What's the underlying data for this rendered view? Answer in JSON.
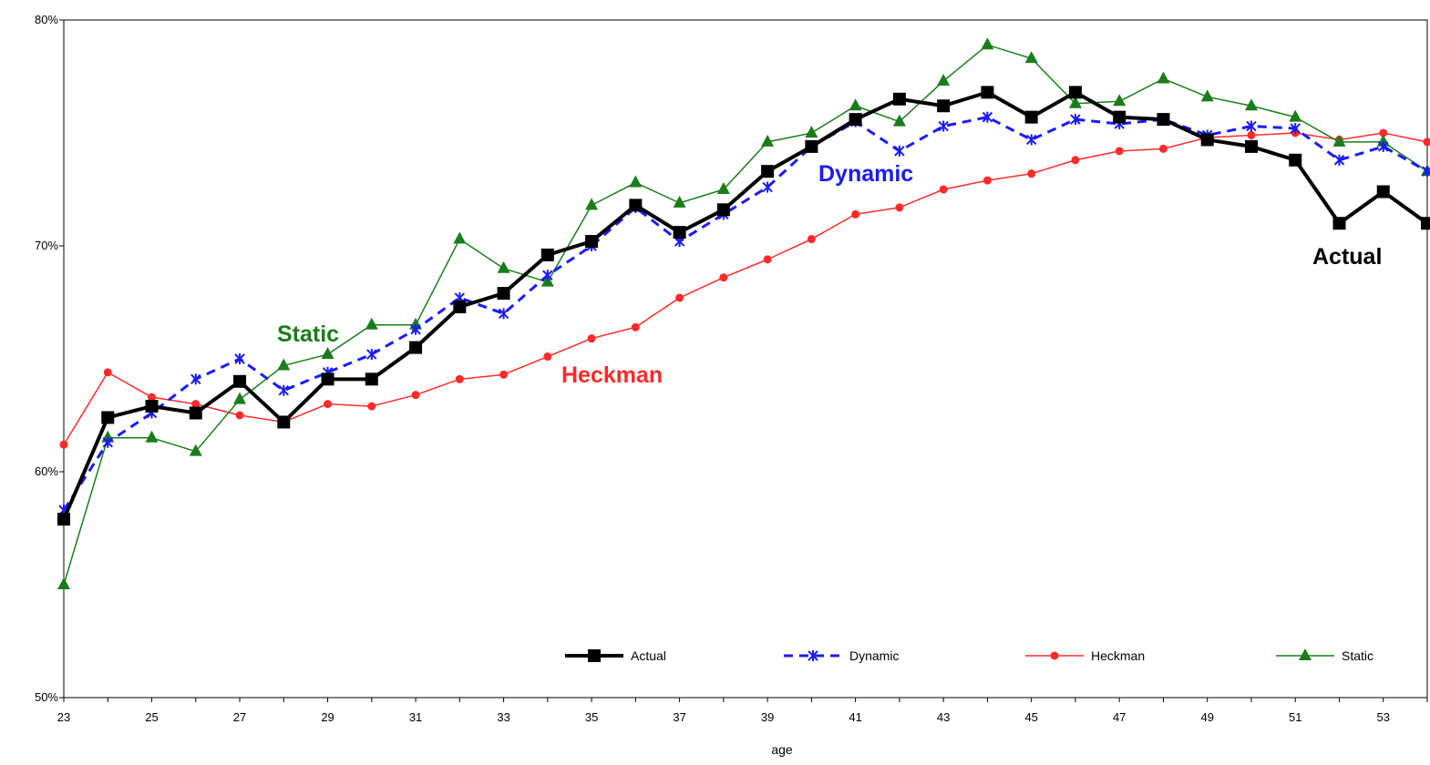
{
  "chart_data": {
    "type": "line",
    "title": "",
    "xlabel": "age",
    "ylabel": "",
    "x": [
      23,
      24,
      25,
      26,
      27,
      28,
      29,
      30,
      31,
      32,
      33,
      34,
      35,
      36,
      37,
      38,
      39,
      40,
      41,
      42,
      43,
      44,
      45,
      46,
      47,
      48,
      49,
      50,
      51,
      52,
      53,
      54
    ],
    "xlim": [
      23,
      54
    ],
    "x_tick_labels": [
      "23",
      "25",
      "27",
      "29",
      "31",
      "33",
      "35",
      "37",
      "39",
      "41",
      "43",
      "45",
      "47",
      "49",
      "51",
      "53"
    ],
    "ylim": [
      50,
      80
    ],
    "y_tick_labels": [
      "50%",
      "60%",
      "70%",
      "80%"
    ],
    "y_tick_values": [
      50,
      60,
      70,
      80
    ],
    "grid": false,
    "legend_placement": "bottom-right",
    "series": [
      {
        "name": "Actual",
        "color": "#000000",
        "marker": "square",
        "dash": "solid",
        "values": [
          57.9,
          62.4,
          62.9,
          62.6,
          64.0,
          62.2,
          64.1,
          64.1,
          65.5,
          67.3,
          67.9,
          69.6,
          70.2,
          71.8,
          70.6,
          71.6,
          73.3,
          74.4,
          75.6,
          76.5,
          76.2,
          76.8,
          75.7,
          76.8,
          75.7,
          75.6,
          74.7,
          74.4,
          73.8,
          71.0,
          72.4,
          71.0
        ]
      },
      {
        "name": "Dynamic",
        "color": "#1a1aff",
        "marker": "asterisk",
        "dash": "dashed",
        "values": [
          58.3,
          61.3,
          62.6,
          64.1,
          65.0,
          63.6,
          64.4,
          65.2,
          66.3,
          67.7,
          67.0,
          68.7,
          70.0,
          71.7,
          70.2,
          71.4,
          72.6,
          74.4,
          75.5,
          74.2,
          75.3,
          75.7,
          74.7,
          75.6,
          75.4,
          75.6,
          74.9,
          75.3,
          75.2,
          73.8,
          74.4,
          73.3
        ]
      },
      {
        "name": "Heckman",
        "color": "#ff2a2a",
        "marker": "circle",
        "dash": "solid",
        "values": [
          61.2,
          64.4,
          63.3,
          63.0,
          62.5,
          62.2,
          63.0,
          62.9,
          63.4,
          64.1,
          64.3,
          65.1,
          65.9,
          66.4,
          67.7,
          68.6,
          69.4,
          70.3,
          71.4,
          71.7,
          72.5,
          72.9,
          73.2,
          73.8,
          74.2,
          74.3,
          74.8,
          74.9,
          75.0,
          74.7,
          75.0,
          74.6
        ]
      },
      {
        "name": "Static",
        "color": "#1a7d1a",
        "marker": "triangle",
        "dash": "solid",
        "values": [
          55.0,
          61.5,
          61.5,
          60.9,
          63.2,
          64.7,
          65.2,
          66.5,
          66.5,
          70.3,
          69.0,
          68.4,
          71.8,
          72.8,
          71.9,
          72.5,
          74.6,
          75.0,
          76.2,
          75.5,
          77.3,
          78.9,
          78.3,
          76.3,
          76.4,
          77.4,
          76.6,
          76.2,
          75.7,
          74.6,
          74.6,
          73.3
        ]
      }
    ],
    "annotations": [
      {
        "text": "Static",
        "color": "#1a7d1a"
      },
      {
        "text": "Dynamic",
        "color": "#1a1aff"
      },
      {
        "text": "Heckman",
        "color": "#ff2a2a"
      },
      {
        "text": "Actual",
        "color": "#000000"
      }
    ]
  }
}
